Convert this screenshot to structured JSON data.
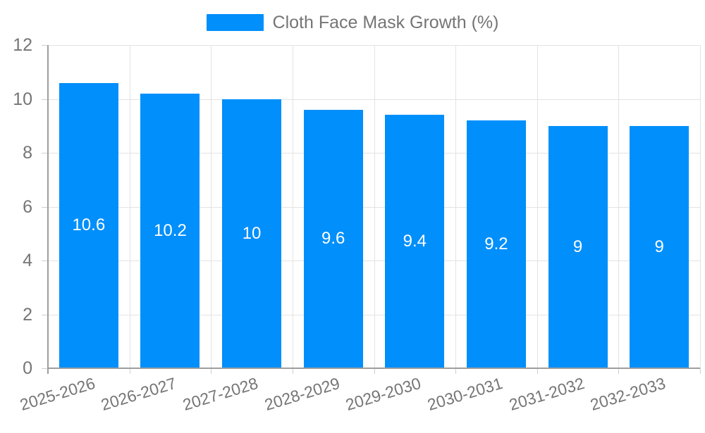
{
  "chart_data": {
    "type": "bar",
    "title": "Cloth Face Mask Growth (%)",
    "legend": {
      "position": "top-center",
      "entries": [
        {
          "label": "Cloth Face Mask Growth (%)",
          "color": "#008FFB"
        }
      ]
    },
    "categories": [
      "2025-2026",
      "2026-2027",
      "2027-2028",
      "2028-2029",
      "2029-2030",
      "2030-2031",
      "2031-2032",
      "2032-2033"
    ],
    "values": [
      10.6,
      10.2,
      10,
      9.6,
      9.4,
      9.2,
      9,
      9
    ],
    "value_labels": [
      "10.6",
      "10.2",
      "10",
      "9.6",
      "9.4",
      "9.2",
      "9",
      "9"
    ],
    "xlabel": "",
    "ylabel": "",
    "ylim": [
      0,
      12
    ],
    "yticks": [
      0,
      2,
      4,
      6,
      8,
      10,
      12
    ],
    "grid": true,
    "x_label_rotation_deg": -17,
    "colors": {
      "bar": "#008FFB",
      "value_label": "#ffffff",
      "axis_label": "#757575",
      "grid_line": "#e3e3e3",
      "tick_mark": "#cfcfcf",
      "axis_line": "#9e9e9e",
      "background": "#ffffff"
    }
  }
}
